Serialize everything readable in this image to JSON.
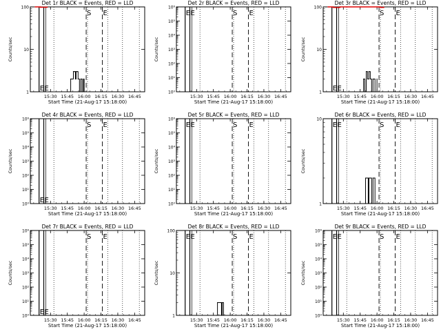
{
  "page": {
    "background": "#ffffff",
    "ink": "#000000",
    "lld_color": "#dd0000"
  },
  "x_ticks": [
    "15:30",
    "15:45",
    "16:00",
    "16:15",
    "16:30",
    "16:45"
  ],
  "xlabel": "Start Time (21-Aug-17 15:18:00)",
  "ylabel": "Counts/sec",
  "chart_data": [
    {
      "type": "line",
      "title": "Det 1r BLACK = Events, RED = LLD",
      "ylim": [
        1,
        100
      ],
      "y_ticks": [
        "100",
        "10",
        "1"
      ],
      "markers": [
        "E",
        "E",
        "S",
        "E"
      ],
      "series": [
        {
          "name": "Events",
          "values": [
            [
              15.78,
              1
            ],
            [
              15.8,
              2
            ],
            [
              15.82,
              2
            ],
            [
              15.84,
              3
            ],
            [
              15.86,
              3
            ],
            [
              15.87,
              2
            ],
            [
              15.88,
              3
            ],
            [
              15.9,
              3
            ],
            [
              15.91,
              2
            ],
            [
              15.93,
              1
            ],
            [
              15.95,
              2
            ],
            [
              15.97,
              1
            ],
            [
              15.99,
              2
            ],
            [
              16.0,
              1
            ]
          ]
        },
        {
          "name": "LLD",
          "values": [
            [
              15.27,
              100
            ],
            [
              15.35,
              98
            ],
            [
              15.45,
              100
            ]
          ]
        }
      ]
    },
    {
      "type": "line",
      "title": "Det 2r BLACK = Events, RED = LLD",
      "ylim": [
        1,
        1000000
      ],
      "y_ticks": [
        "10⁶",
        "10⁵",
        "10⁴",
        "10³",
        "10²",
        "10¹",
        "10⁰"
      ],
      "markers": [
        "E",
        "E",
        "S",
        "E"
      ],
      "series": []
    },
    {
      "type": "line",
      "title": "Det 3r BLACK = Events, RED = LLD",
      "ylim": [
        1,
        100
      ],
      "y_ticks": [
        "100",
        "10",
        "1"
      ],
      "markers": [
        "E",
        "E",
        "S",
        "E"
      ],
      "series": [
        {
          "name": "Events",
          "values": [
            [
              15.78,
              1
            ],
            [
              15.8,
              2
            ],
            [
              15.82,
              1
            ],
            [
              15.84,
              3
            ],
            [
              15.86,
              2
            ],
            [
              15.88,
              3
            ],
            [
              15.9,
              2
            ],
            [
              15.92,
              1
            ],
            [
              15.94,
              2
            ],
            [
              15.97,
              1
            ],
            [
              16.0,
              2
            ]
          ]
        },
        {
          "name": "LLD",
          "values": [
            [
              15.27,
              100
            ],
            [
              15.35,
              97
            ],
            [
              15.45,
              100
            ],
            [
              16.0,
              100
            ],
            [
              16.05,
              97
            ],
            [
              16.1,
              100
            ]
          ]
        }
      ]
    },
    {
      "type": "line",
      "title": "Det 4r BLACK = Events, RED = LLD",
      "ylim": [
        1,
        1000000
      ],
      "y_ticks": [
        "10⁶",
        "10⁵",
        "10⁴",
        "10³",
        "10²",
        "10¹",
        "10⁰"
      ],
      "markers": [
        "E",
        "E",
        "S",
        "E"
      ],
      "series": []
    },
    {
      "type": "line",
      "title": "Det 5r BLACK = Events, RED = LLD",
      "ylim": [
        1,
        1000000
      ],
      "y_ticks": [
        "10⁶",
        "10⁵",
        "10⁴",
        "10³",
        "10²",
        "10¹",
        "10⁰"
      ],
      "markers": [
        "E",
        "E",
        "S",
        "E"
      ],
      "series": []
    },
    {
      "type": "line",
      "title": "Det 6r BLACK = Events, RED = LLD",
      "ylim": [
        1,
        10
      ],
      "y_ticks": [
        "10",
        "1"
      ],
      "markers": [
        "E",
        "E",
        "S",
        "E"
      ],
      "series": [
        {
          "name": "Events",
          "values": [
            [
              15.82,
              1
            ],
            [
              15.83,
              2
            ],
            [
              15.85,
              2
            ],
            [
              15.87,
              1
            ],
            [
              15.88,
              2
            ],
            [
              15.9,
              2
            ],
            [
              15.92,
              1
            ],
            [
              15.94,
              2
            ],
            [
              15.96,
              2
            ],
            [
              15.97,
              1
            ]
          ]
        }
      ]
    },
    {
      "type": "line",
      "title": "Det 7r BLACK = Events, RED = LLD",
      "ylim": [
        1,
        1000000
      ],
      "y_ticks": [
        "10⁶",
        "10⁵",
        "10⁴",
        "10³",
        "10²",
        "10¹",
        "10⁰"
      ],
      "markers": [
        "E",
        "E",
        "S",
        "E"
      ],
      "series": []
    },
    {
      "type": "line",
      "title": "Det 8r BLACK = Events, RED = LLD",
      "ylim": [
        1,
        100
      ],
      "y_ticks": [
        "100",
        "10",
        "1"
      ],
      "markers": [
        "E",
        "E",
        "S",
        "E"
      ],
      "series": [
        {
          "name": "Events",
          "values": [
            [
              15.8,
              1
            ],
            [
              15.81,
              2
            ],
            [
              15.86,
              2
            ],
            [
              15.87,
              1
            ],
            [
              15.88,
              2
            ],
            [
              15.9,
              1
            ]
          ]
        }
      ]
    },
    {
      "type": "line",
      "title": "Det 9r BLACK = Events, RED = LLD",
      "ylim": [
        1,
        1000000
      ],
      "y_ticks": [
        "10⁶",
        "10⁵",
        "10⁴",
        "10³",
        "10²",
        "10¹",
        "10⁰"
      ],
      "markers": [
        "E",
        "E",
        "S",
        "E"
      ],
      "series": []
    }
  ]
}
